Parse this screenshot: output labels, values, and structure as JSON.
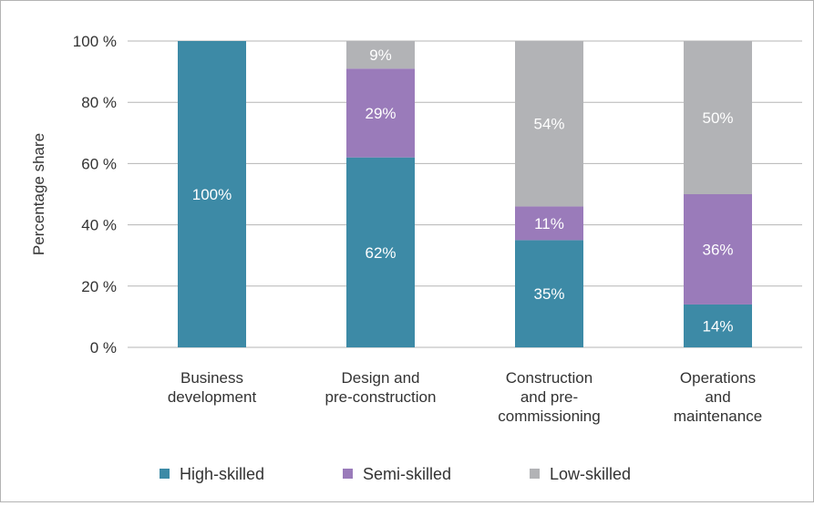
{
  "chart_data": {
    "type": "bar",
    "stacked": true,
    "title": "",
    "xlabel": "",
    "ylabel": "Percentage share",
    "ylim": [
      0,
      100
    ],
    "y_ticks": [
      0,
      20,
      40,
      60,
      80,
      100
    ],
    "y_tick_labels": [
      "0 %",
      "20 %",
      "40 %",
      "60 %",
      "80 %",
      "100 %"
    ],
    "categories": [
      [
        "Business",
        "development"
      ],
      [
        "Design and",
        "pre-construction"
      ],
      [
        "Construction",
        "and pre-",
        "commissioning"
      ],
      [
        "Operations",
        "and",
        "maintenance"
      ]
    ],
    "series": [
      {
        "name": "High-skilled",
        "color": "#3d8aa6",
        "values": [
          100,
          62,
          35,
          14
        ],
        "labels": [
          "100%",
          "62%",
          "35%",
          "14%"
        ]
      },
      {
        "name": "Semi-skilled",
        "color": "#9a7bba",
        "values": [
          0,
          29,
          11,
          36
        ],
        "labels": [
          "",
          "29%",
          "11%",
          "36%"
        ]
      },
      {
        "name": "Low-skilled",
        "color": "#b2b3b6",
        "values": [
          0,
          9,
          54,
          50
        ],
        "labels": [
          "",
          "9%",
          "54%",
          "50%"
        ]
      }
    ],
    "grid": true,
    "legend_position": "bottom"
  }
}
